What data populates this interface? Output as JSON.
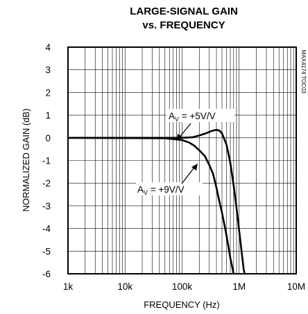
{
  "chart_data": {
    "type": "line",
    "title_line1": "LARGE-SIGNAL GAIN",
    "title_line2": "vs. FREQUENCY",
    "xlabel": "FREQUENCY (Hz)",
    "ylabel": "NORMALIZED GAIN (dB)",
    "x_scale": "log",
    "xlim": [
      1000,
      10000000
    ],
    "ylim": [
      -6,
      4
    ],
    "x_ticks": [
      {
        "value": 1000,
        "label": "1k"
      },
      {
        "value": 10000,
        "label": "10k"
      },
      {
        "value": 100000,
        "label": "100k"
      },
      {
        "value": 1000000,
        "label": "1M"
      },
      {
        "value": 10000000,
        "label": "10M"
      }
    ],
    "y_ticks": [
      {
        "value": 4,
        "label": "4"
      },
      {
        "value": 3,
        "label": "3"
      },
      {
        "value": 2,
        "label": "2"
      },
      {
        "value": 1,
        "label": "1"
      },
      {
        "value": 0,
        "label": "0"
      },
      {
        "value": -1,
        "label": "-1"
      },
      {
        "value": -2,
        "label": "-2"
      },
      {
        "value": -3,
        "label": "-3"
      },
      {
        "value": -4,
        "label": "-4"
      },
      {
        "value": -5,
        "label": "-5"
      },
      {
        "value": -6,
        "label": "-6"
      }
    ],
    "grid": true,
    "series": [
      {
        "id": "av5",
        "points": [
          [
            1000,
            0
          ],
          [
            100000,
            0
          ],
          [
            150000,
            0.02
          ],
          [
            200000,
            0.1
          ],
          [
            250000,
            0.18
          ],
          [
            300000,
            0.26
          ],
          [
            350000,
            0.32
          ],
          [
            400000,
            0.35
          ],
          [
            450000,
            0.32
          ],
          [
            500000,
            0.2
          ],
          [
            600000,
            -0.3
          ],
          [
            700000,
            -1.1
          ],
          [
            800000,
            -2.1
          ],
          [
            900000,
            -3.1
          ],
          [
            1000000,
            -4.1
          ],
          [
            1100000,
            -5.0
          ],
          [
            1200000,
            -5.8
          ],
          [
            1250000,
            -6.0
          ]
        ]
      },
      {
        "id": "av9",
        "points": [
          [
            1000,
            0
          ],
          [
            50000,
            -0.02
          ],
          [
            80000,
            -0.07
          ],
          [
            100000,
            -0.1
          ],
          [
            130000,
            -0.2
          ],
          [
            160000,
            -0.33
          ],
          [
            200000,
            -0.55
          ],
          [
            250000,
            -0.8
          ],
          [
            300000,
            -1.2
          ],
          [
            350000,
            -1.6
          ],
          [
            400000,
            -2.2
          ],
          [
            450000,
            -2.8
          ],
          [
            500000,
            -3.3
          ],
          [
            600000,
            -4.3
          ],
          [
            700000,
            -5.3
          ],
          [
            800000,
            -6.0
          ]
        ]
      }
    ],
    "annotations": [
      {
        "id": "av5",
        "prefix": "A",
        "subscript": "V",
        "suffix": " = +5V/V"
      },
      {
        "id": "av9",
        "prefix": "A",
        "subscript": "V",
        "suffix": " = +9V/V"
      }
    ],
    "figure_code": "MAX4174 TOC03"
  }
}
